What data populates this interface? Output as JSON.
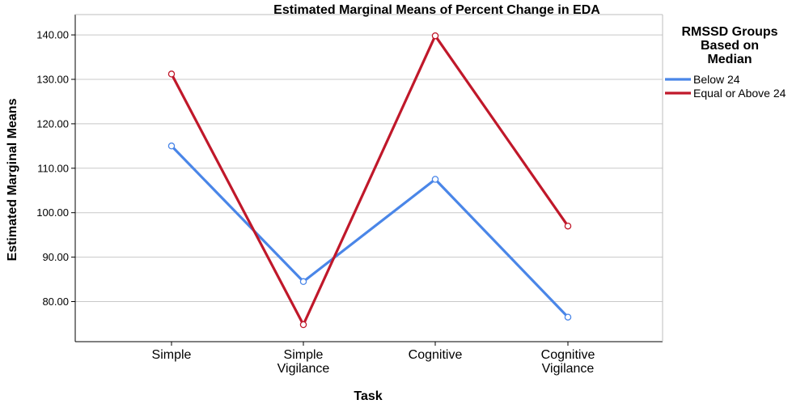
{
  "chart_data": {
    "type": "line",
    "title": "Estimated Marginal Means of Percent Change in EDA",
    "xlabel": "Task",
    "ylabel": "Estimated Marginal Means",
    "categories": [
      [
        "Simple"
      ],
      [
        "Simple",
        "Vigilance"
      ],
      [
        "Cognitive"
      ],
      [
        "Cognitive",
        "Vigilance"
      ]
    ],
    "ylim": [
      73,
      146
    ],
    "yticks": [
      80,
      90,
      100,
      110,
      120,
      130,
      140
    ],
    "ytick_labels": [
      "80.00",
      "90.00",
      "100.00",
      "110.00",
      "120.00",
      "130.00",
      "140.00"
    ],
    "grid": true,
    "legend": {
      "title": [
        "RMSSD Groups",
        "Based on",
        "Median"
      ],
      "placement": "right"
    },
    "series": [
      {
        "name": "Below 24",
        "color": "#4a86e8",
        "values": [
          115.0,
          84.5,
          107.5,
          76.5
        ]
      },
      {
        "name": "Equal or Above 24",
        "color": "#c0182a",
        "values": [
          131.2,
          74.8,
          139.8,
          97.0
        ]
      }
    ]
  }
}
